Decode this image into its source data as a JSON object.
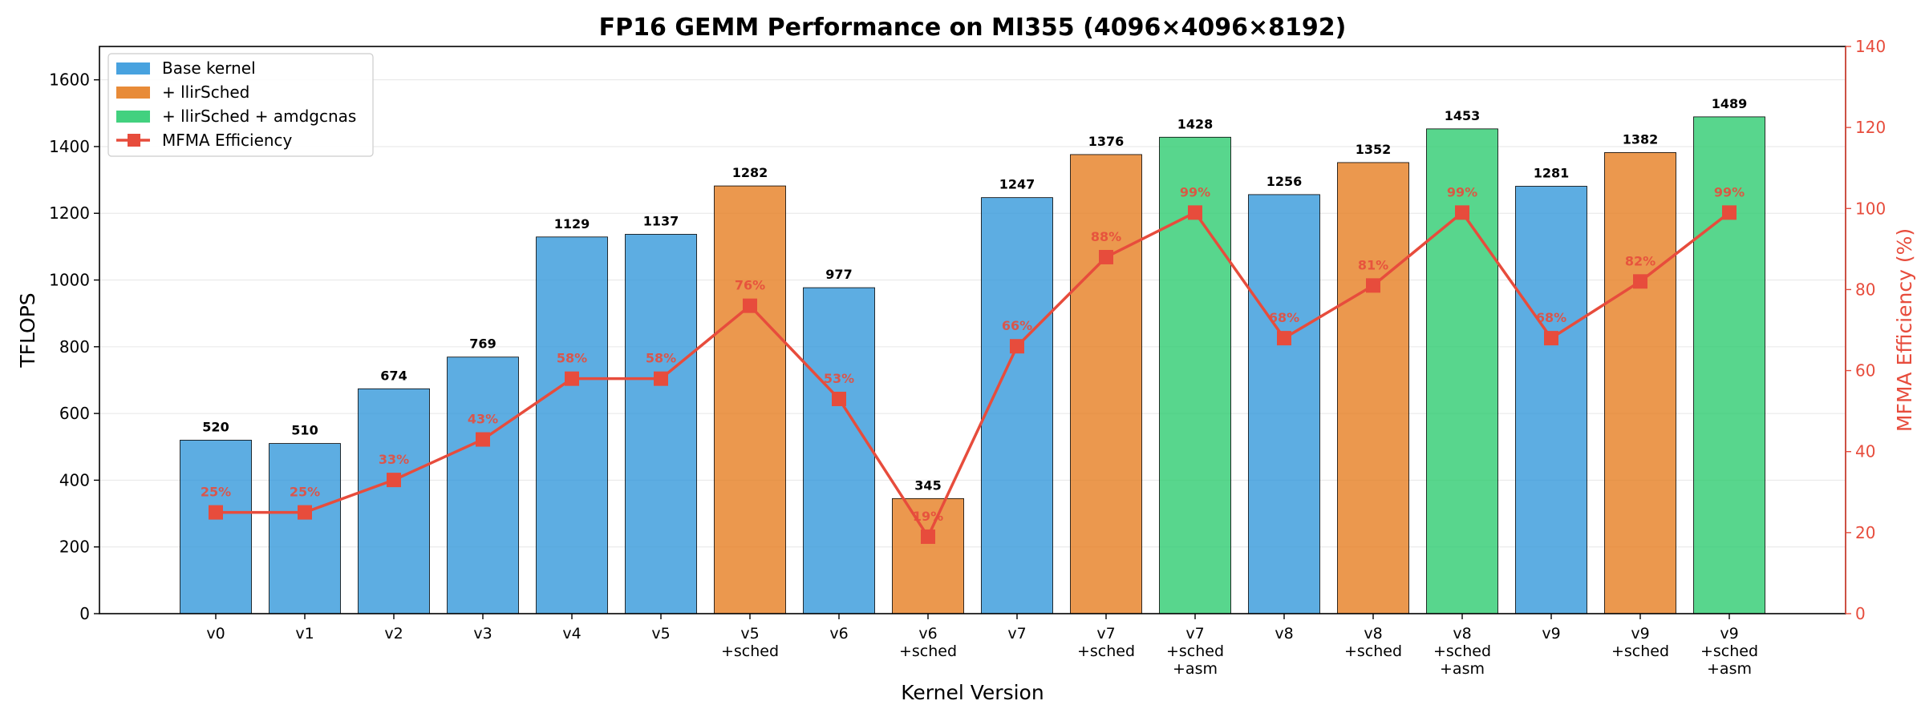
{
  "chart_data": {
    "type": "bar",
    "title": "FP16 GEMM Performance on MI355 (4096×4096×8192)",
    "xlabel": "Kernel Version",
    "ylabel": "TFLOPS",
    "y2label": "MFMA Efficiency (%)",
    "ylim": [
      0,
      1700
    ],
    "y2lim": [
      0,
      140
    ],
    "yticks": [
      0,
      200,
      400,
      600,
      800,
      1000,
      1200,
      1400,
      1600
    ],
    "y2ticks": [
      0,
      20,
      40,
      60,
      80,
      100,
      120,
      140
    ],
    "grid": "horizontal",
    "legend_position": "top-left",
    "categories": [
      [
        "v0"
      ],
      [
        "v1"
      ],
      [
        "v2"
      ],
      [
        "v3"
      ],
      [
        "v4"
      ],
      [
        "v5"
      ],
      [
        "v5",
        "+sched"
      ],
      [
        "v6"
      ],
      [
        "v6",
        "+sched"
      ],
      [
        "v7"
      ],
      [
        "v7",
        "+sched"
      ],
      [
        "v7",
        "+sched",
        "+asm"
      ],
      [
        "v8"
      ],
      [
        "v8",
        "+sched"
      ],
      [
        "v8",
        "+sched",
        "+asm"
      ],
      [
        "v9"
      ],
      [
        "v9",
        "+sched"
      ],
      [
        "v9",
        "+sched",
        "+asm"
      ]
    ],
    "values": [
      520,
      510,
      674,
      769,
      1129,
      1137,
      1282,
      977,
      345,
      1247,
      1376,
      1428,
      1256,
      1352,
      1453,
      1281,
      1382,
      1489
    ],
    "groups": [
      0,
      0,
      0,
      0,
      0,
      0,
      1,
      0,
      1,
      0,
      1,
      2,
      0,
      1,
      2,
      0,
      1,
      2
    ],
    "efficiency": [
      25,
      25,
      33,
      43,
      58,
      58,
      76,
      53,
      19,
      66,
      88,
      99,
      68,
      81,
      99,
      68,
      82,
      99
    ],
    "efficiency_labels": [
      "25%",
      "25%",
      "33%",
      "43%",
      "58%",
      "58%",
      "76%",
      "53%",
      "19%",
      "66%",
      "88%",
      "99%",
      "68%",
      "81%",
      "99%",
      "68%",
      "82%",
      "99%"
    ],
    "legend": [
      {
        "label": "Base kernel",
        "color": "#3498db"
      },
      {
        "label": "+ llirSched",
        "color": "#e67e22"
      },
      {
        "label": "+ llirSched + amdgcnas",
        "color": "#2ecc71"
      },
      {
        "label": "MFMA Efficiency",
        "color": "#e74c3c"
      }
    ],
    "line_color": "#e74c3c"
  }
}
